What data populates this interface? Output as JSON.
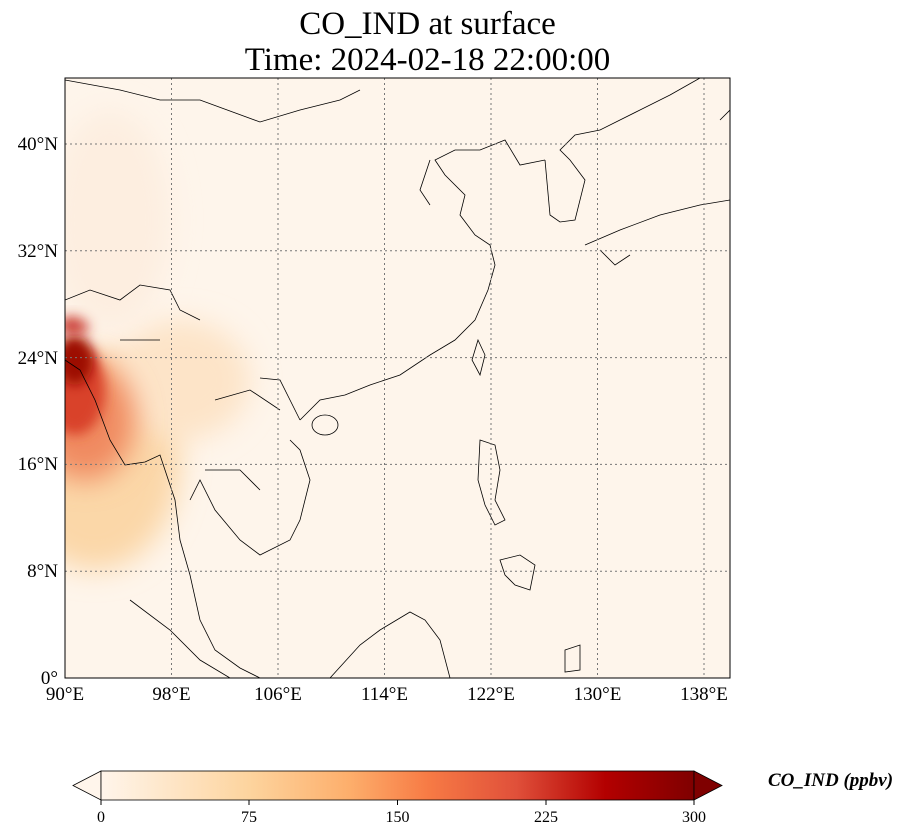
{
  "title": {
    "line1": "CO_IND at surface",
    "line2": "Time: 2024-02-18 22:00:00"
  },
  "map": {
    "extent_lon": [
      90,
      140
    ],
    "extent_lat": [
      0,
      45
    ],
    "x_ticks": [
      "90°E",
      "98°E",
      "106°E",
      "114°E",
      "122°E",
      "130°E",
      "138°E"
    ],
    "y_ticks": [
      "0°",
      "8°N",
      "16°N",
      "24°N",
      "32°N",
      "40°N"
    ],
    "gridlines": "dotted"
  },
  "colorbar": {
    "label": "CO_IND (ppbv)",
    "ticks": [
      "0",
      "75",
      "150",
      "225",
      "300"
    ],
    "range": [
      0,
      300
    ],
    "extend": "both",
    "colormap": [
      "#fff5eb",
      "#fdd49e",
      "#fdae6b",
      "#f77b45",
      "#d7301f",
      "#b30000",
      "#7f0000"
    ]
  }
}
